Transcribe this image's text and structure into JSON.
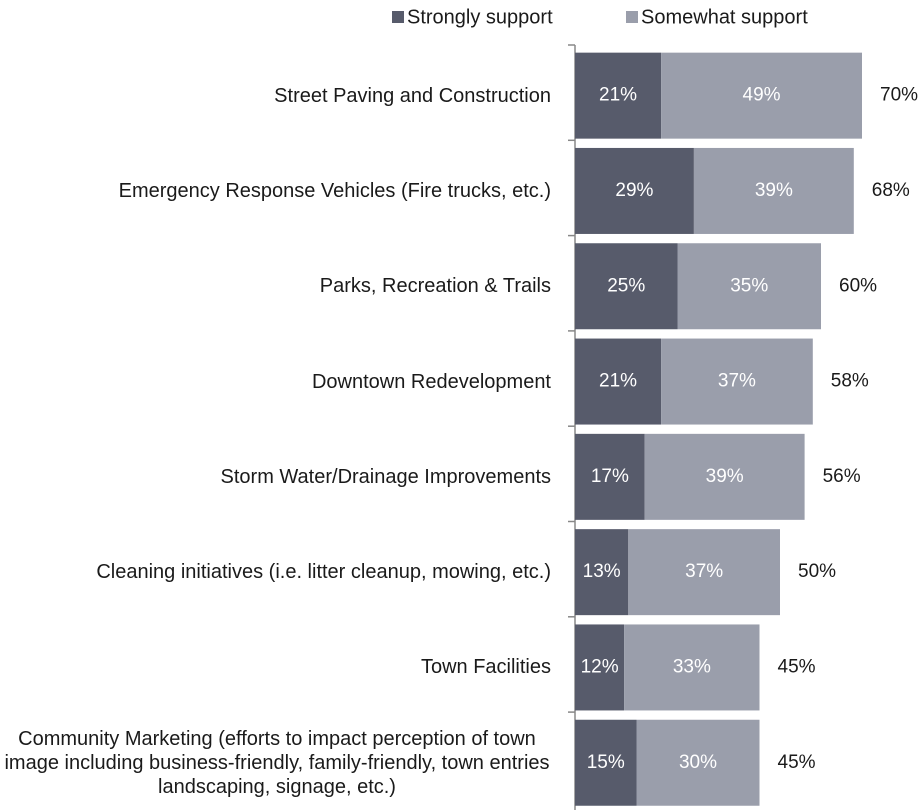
{
  "chart_data": {
    "type": "stacked-barh",
    "categories": [
      "Street Paving and Construction",
      "Emergency Response Vehicles (Fire trucks, etc.)",
      "Parks, Recreation & Trails",
      "Downtown Redevelopment",
      "Storm Water/Drainage Improvements",
      "Cleaning initiatives (i.e. litter cleanup, mowing, etc.)",
      "Town Facilities",
      "Community Marketing (efforts to impact perception of town image including business-friendly, family-friendly, town entries landscaping, signage, etc.)"
    ],
    "series": [
      {
        "name": "Strongly support",
        "color": "#575b6b",
        "values": [
          21,
          29,
          25,
          21,
          17,
          13,
          12,
          15
        ],
        "value_labels": [
          "21%",
          "29%",
          "25%",
          "21%",
          "17%",
          "13%",
          "12%",
          "15%"
        ]
      },
      {
        "name": "Somewhat support",
        "color": "#9a9eab",
        "values": [
          49,
          39,
          35,
          37,
          39,
          37,
          33,
          30
        ],
        "value_labels": [
          "49%",
          "39%",
          "35%",
          "37%",
          "39%",
          "37%",
          "33%",
          "30%"
        ]
      }
    ],
    "totals": {
      "values": [
        70,
        68,
        60,
        58,
        56,
        50,
        45,
        45
      ],
      "value_labels": [
        "70%",
        "68%",
        "60%",
        "58%",
        "56%",
        "50%",
        "45%",
        "45%"
      ]
    },
    "xlim": [
      0,
      100
    ],
    "legend": "top"
  }
}
